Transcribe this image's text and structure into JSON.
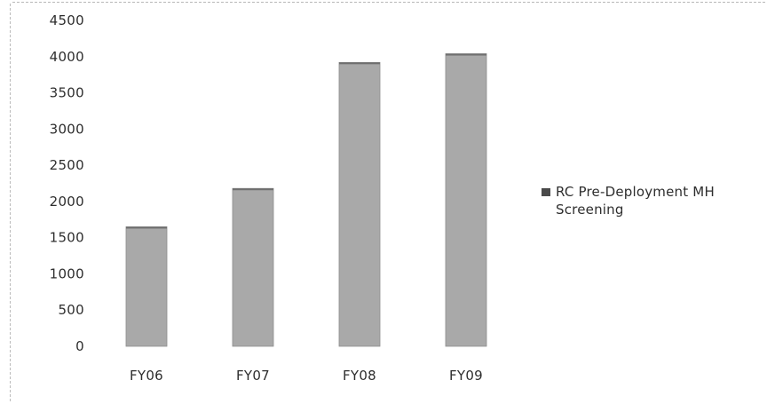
{
  "chart_data": {
    "type": "bar",
    "title": "",
    "xlabel": "",
    "ylabel": "",
    "categories": [
      "FY06",
      "FY07",
      "FY08",
      "FY09"
    ],
    "series": [
      {
        "name": "RC Pre-Deployment MH Screening",
        "values": [
          1650,
          2180,
          3920,
          4040
        ]
      }
    ],
    "ylim": [
      0,
      4500
    ],
    "yticks": [
      "0",
      "500",
      "1000",
      "1500",
      "2000",
      "2500",
      "3000",
      "3500",
      "4000",
      "4500"
    ],
    "grid": false,
    "legend_position": "right",
    "colors": {
      "bar": "#a9a9a9",
      "bar_edge": "#8c8c8c",
      "legend_swatch": "#4a4a4a",
      "text": "#2e2e2e"
    }
  },
  "legend": {
    "line1": "RC Pre-Deployment MH",
    "line2": "Screening"
  }
}
